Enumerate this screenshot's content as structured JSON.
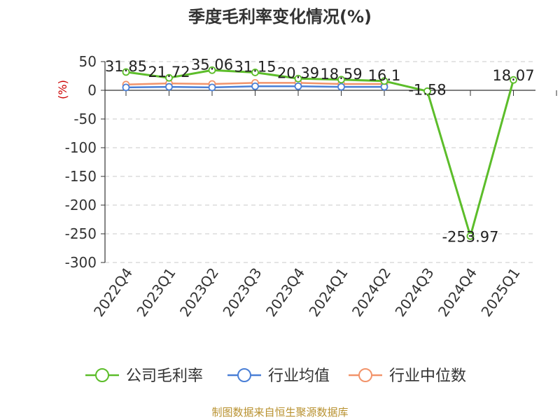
{
  "chart_data": {
    "type": "line",
    "title": "季度毛利率变化情况(%)",
    "ylabel": "(%)",
    "ylim": [
      -300,
      50
    ],
    "yticks": [
      50,
      0,
      -50,
      -100,
      -150,
      -200,
      -250,
      -300
    ],
    "categories": [
      "2022Q4",
      "2023Q1",
      "2023Q2",
      "2023Q3",
      "2023Q4",
      "2024Q1",
      "2024Q2",
      "2024Q3",
      "2024Q4",
      "2025Q1"
    ],
    "series": [
      {
        "name": "公司毛利率",
        "color": "#5cbd2a",
        "values": [
          31.85,
          21.72,
          35.06,
          31.15,
          20.39,
          18.59,
          16.1,
          -1.58,
          -253.97,
          18.07
        ],
        "labels": [
          "31.85",
          "21.72",
          "35.06",
          "31.15",
          "20.39",
          "18.59",
          "16.1",
          "-1.58",
          "-253.97",
          "18.07"
        ]
      },
      {
        "name": "行业均值",
        "color": "#4a7fd6",
        "values": [
          5,
          6,
          5,
          7,
          7,
          6,
          6,
          null,
          null,
          null
        ]
      },
      {
        "name": "行业中位数",
        "color": "#f2946b",
        "values": [
          10,
          12,
          11,
          13,
          13,
          11,
          11,
          null,
          null,
          null
        ]
      }
    ],
    "grid": true,
    "legend": "bottom"
  },
  "source": "制图数据来自恒生聚源数据库"
}
